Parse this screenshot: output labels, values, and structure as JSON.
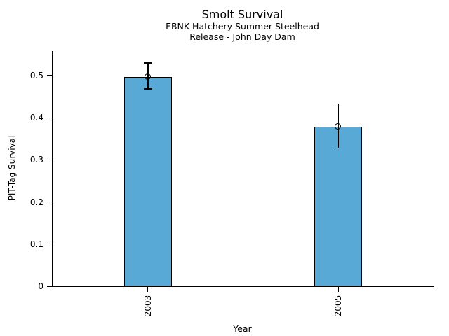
{
  "chart_data": {
    "type": "bar",
    "title": "Smolt Survival",
    "subtitle1": "EBNK Hatchery Summer Steelhead",
    "subtitle2": "Release - John Day Dam",
    "xlabel": "Year",
    "ylabel": "PIT-Tag Survival",
    "categories": [
      "2003",
      "2005"
    ],
    "values": [
      0.497,
      0.379
    ],
    "error_upper": [
      0.53,
      0.433
    ],
    "error_lower": [
      0.468,
      0.328
    ],
    "ytick_values": [
      0,
      0.1,
      0.2,
      0.3,
      0.4,
      0.5
    ],
    "ytick_labels": [
      "0",
      "0.1",
      "0.2",
      "0.3",
      "0.4",
      "0.5"
    ],
    "ylim": [
      0,
      0.558
    ],
    "grid": false,
    "legend": null,
    "xtick_label_rotation_deg": 90,
    "marker": "open-circle",
    "bar_fill_color": "#58A9D5",
    "bar_edge_color": "#000000",
    "errorbar_color": "#000000",
    "axis_color": "#000000",
    "background_color": "#FFFFFF"
  }
}
